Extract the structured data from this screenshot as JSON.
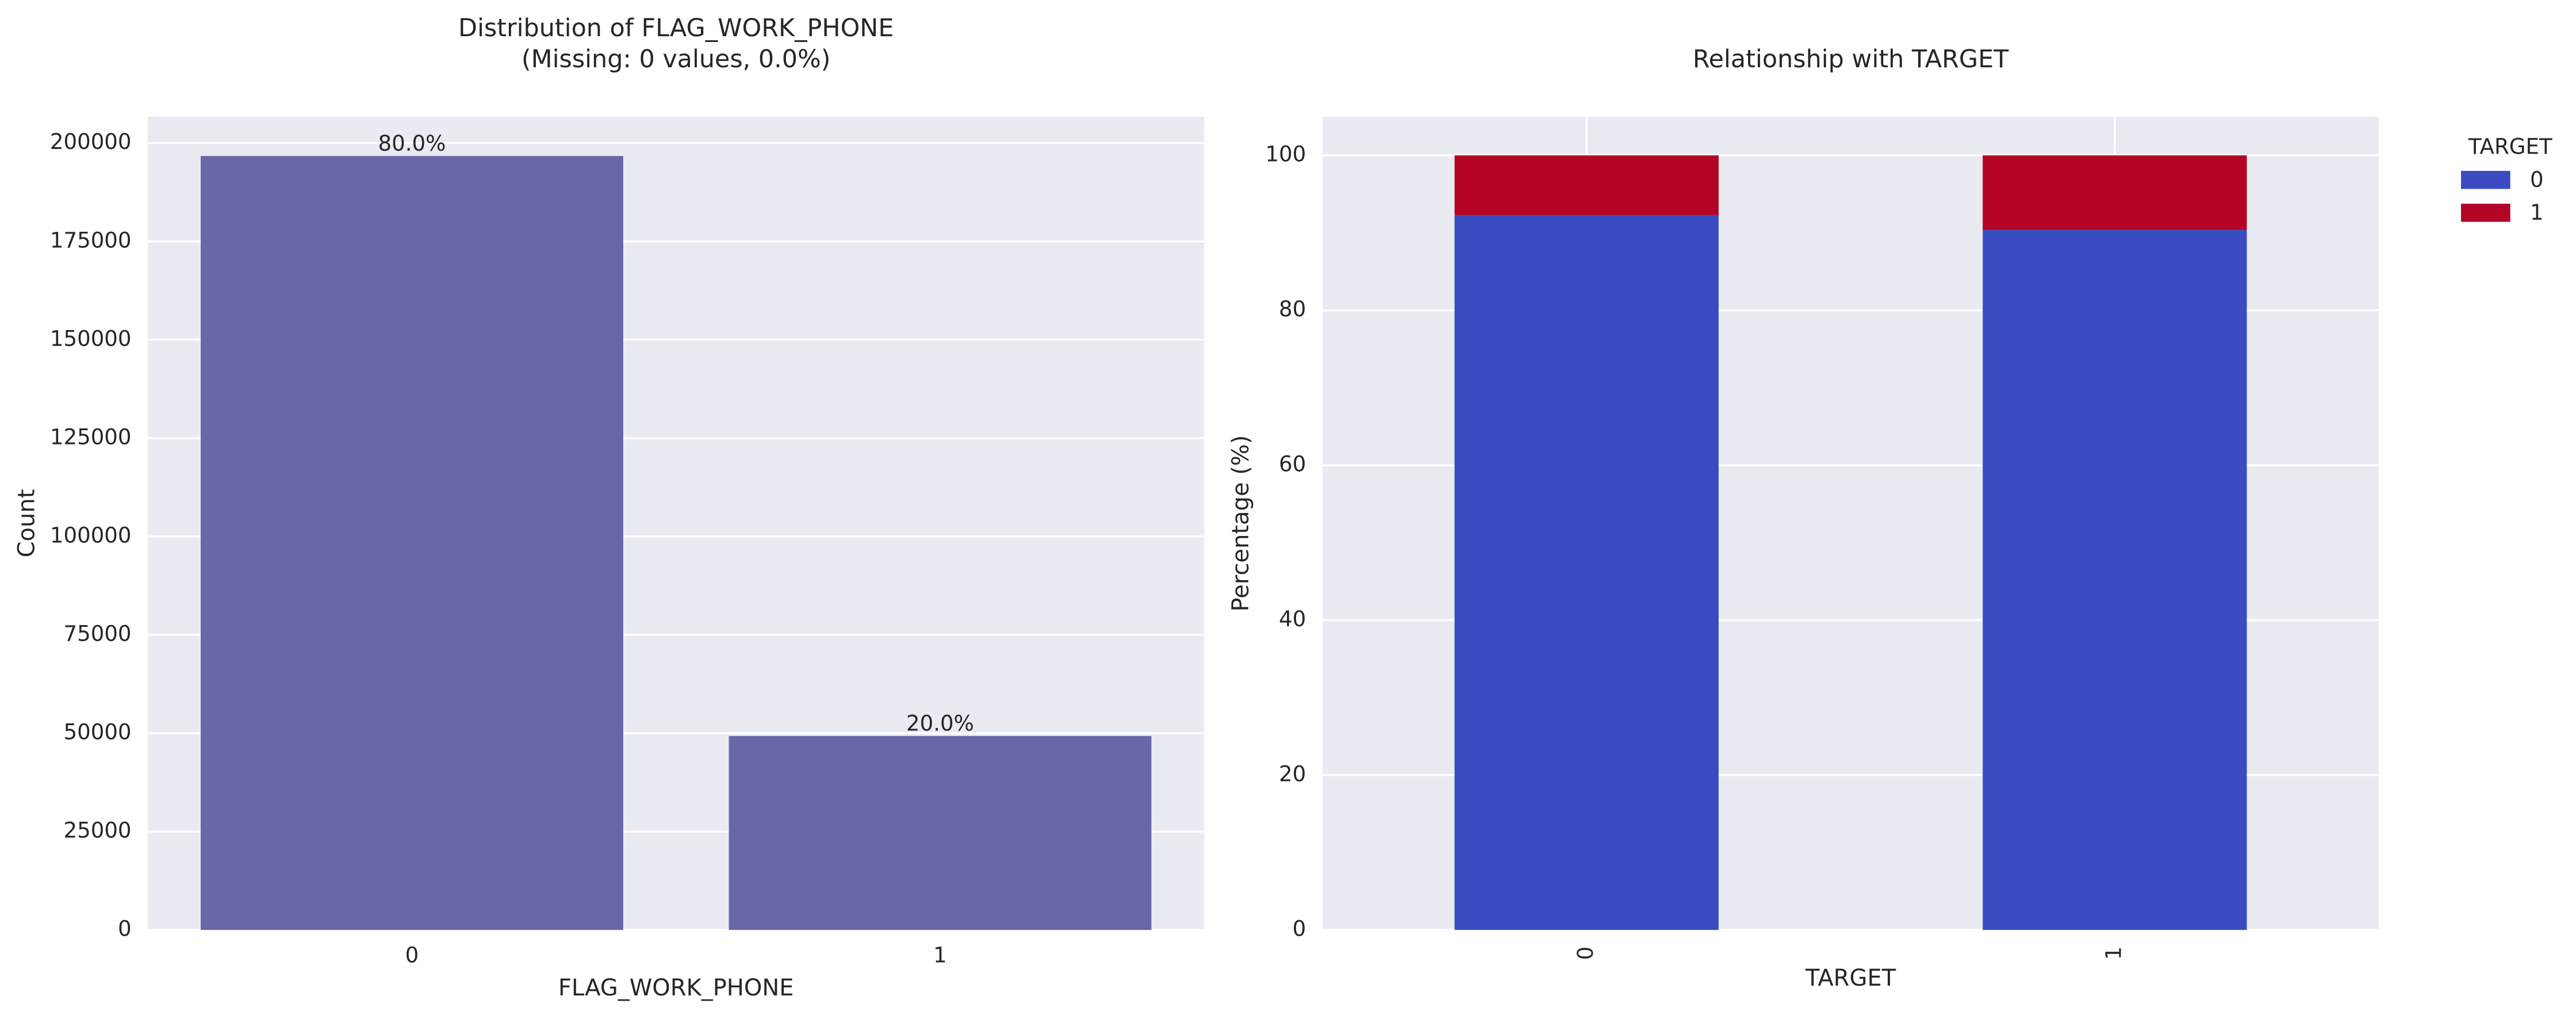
{
  "chart_data": [
    {
      "type": "bar",
      "title": [
        "Distribution of FLAG_WORK_PHONE",
        "(Missing: 0 values, 0.0%)"
      ],
      "xlabel": "FLAG_WORK_PHONE",
      "ylabel": "Count",
      "categories": [
        "0",
        "1"
      ],
      "values": [
        196700,
        49300
      ],
      "value_labels": [
        "80.0%",
        "20.0%"
      ],
      "color": "#6a67a8",
      "ylim": [
        0,
        206700
      ],
      "yticks": [
        0,
        25000,
        50000,
        75000,
        100000,
        125000,
        150000,
        175000,
        200000
      ],
      "grid": true
    },
    {
      "type": "stacked_bar",
      "title": [
        "Relationship with TARGET"
      ],
      "xlabel": "TARGET",
      "ylabel": "Percentage (%)",
      "categories": [
        "0",
        "1"
      ],
      "xtick_rotation": 90,
      "series": [
        {
          "name": "0",
          "color": "#3b4cc0",
          "values": [
            92.3,
            90.4
          ]
        },
        {
          "name": "1",
          "color": "#b40426",
          "values": [
            7.7,
            9.6
          ]
        }
      ],
      "ylim": [
        0,
        105
      ],
      "yticks": [
        0,
        20,
        40,
        60,
        80,
        100
      ],
      "grid": true,
      "xgrid": true,
      "legend": "outside-upper-right",
      "legend_title": "TARGET"
    }
  ]
}
